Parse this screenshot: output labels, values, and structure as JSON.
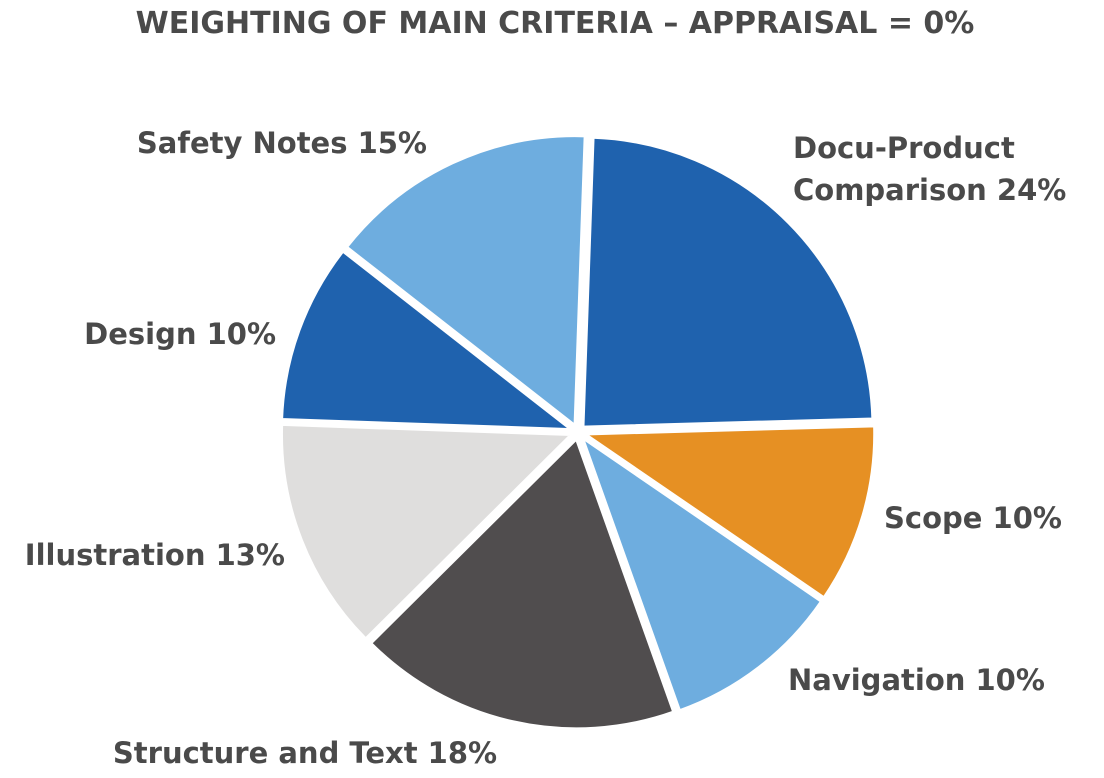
{
  "chart_data": {
    "type": "pie",
    "title": "WEIGHTING OF MAIN CRITERIA – APPRAISAL = 0%",
    "slices": [
      {
        "label_lines": [
          "Docu-Product",
          "Comparison 24%"
        ],
        "category": "Docu-Product Comparison",
        "value": 24,
        "color": "#1f62ae"
      },
      {
        "label_lines": [
          "Scope 10%"
        ],
        "category": "Scope",
        "value": 10,
        "color": "#e69023"
      },
      {
        "label_lines": [
          "Navigation 10%"
        ],
        "category": "Navigation",
        "value": 10,
        "color": "#6eaddf"
      },
      {
        "label_lines": [
          "Structure and Text 18%"
        ],
        "category": "Structure and Text",
        "value": 18,
        "color": "#504d4e"
      },
      {
        "label_lines": [
          "Illustration 13%"
        ],
        "category": "Illustration",
        "value": 13,
        "color": "#dfdedd"
      },
      {
        "label_lines": [
          "Design 10%"
        ],
        "category": "Design",
        "value": 10,
        "color": "#1f62ae"
      },
      {
        "label_lines": [
          "Safety Notes 15%"
        ],
        "category": "Safety Notes",
        "value": 15,
        "color": "#6eaddf"
      }
    ]
  }
}
